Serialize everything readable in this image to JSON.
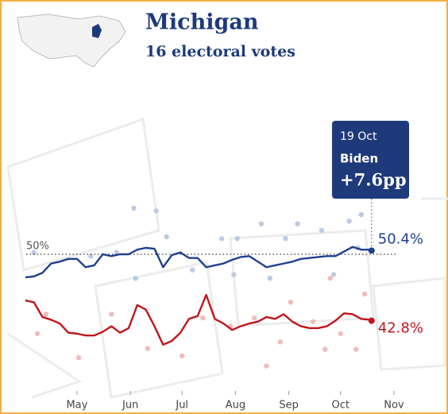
{
  "chart_data": {
    "type": "line",
    "title": "Michigan",
    "subtitle": "16 electoral votes",
    "x": [
      -30,
      -25,
      -20,
      -15,
      -10,
      -5,
      0,
      5,
      10,
      15,
      20,
      25,
      30,
      35,
      40,
      45,
      50,
      55,
      60,
      65,
      70,
      75,
      80,
      85,
      90,
      95,
      100,
      105,
      110,
      115,
      120,
      125,
      130,
      135,
      140,
      145,
      150,
      155,
      160,
      165,
      170,
      171
    ],
    "series": [
      {
        "name": "Biden",
        "color": "#1f3f8f",
        "end_label": "50.4%",
        "values": [
          47.5,
          47.6,
          48.0,
          49.0,
          49.2,
          49.5,
          49.5,
          48.6,
          48.8,
          50.0,
          49.8,
          50.0,
          50.0,
          50.5,
          50.7,
          50.6,
          48.6,
          49.9,
          50.2,
          49.6,
          49.6,
          48.6,
          48.8,
          49.0,
          49.4,
          49.7,
          49.8,
          49.2,
          48.6,
          48.8,
          49.0,
          49.2,
          49.5,
          49.6,
          49.7,
          49.8,
          49.8,
          50.3,
          50.8,
          50.5,
          50.5,
          50.4
        ]
      },
      {
        "color": "#c0151c",
        "end_label": "42.8%",
        "values": [
          45.0,
          44.8,
          43.2,
          42.9,
          42.5,
          41.5,
          41.4,
          41.2,
          41.2,
          41.6,
          42.2,
          41.5,
          42.0,
          44.5,
          44.0,
          42.2,
          40.2,
          40.6,
          41.5,
          43.0,
          43.3,
          45.6,
          43.0,
          42.5,
          41.8,
          42.2,
          42.5,
          42.7,
          43.2,
          43.0,
          43.5,
          42.7,
          42.2,
          42.0,
          42.0,
          42.2,
          42.8,
          43.6,
          43.5,
          43.0,
          42.9,
          42.8
        ]
      }
    ],
    "polls": [
      {
        "color": "#bccae4",
        "x": [
          -25,
          8,
          23,
          33,
          46,
          52,
          84,
          93,
          107,
          121,
          128,
          142,
          158,
          163,
          34,
          67,
          91,
          112,
          149,
          165
        ],
        "values": [
          50.2,
          49.8,
          50.2,
          55,
          54.7,
          51.9,
          51.7,
          51.7,
          53.3,
          51.7,
          53.3,
          52.6,
          53.6,
          50.7,
          47.4,
          48.3,
          47.8,
          47.4,
          47.8,
          54.3
        ]
      },
      {
        "color": "#f2bcbc",
        "x": [
          -23,
          -18,
          20,
          41,
          61,
          73,
          89,
          103,
          118,
          124,
          137,
          144,
          153,
          162,
          147,
          167,
          1,
          110
        ],
        "values": [
          41.4,
          43.5,
          43.5,
          39.8,
          39,
          43.1,
          42.2,
          43.1,
          40.5,
          44.8,
          42.7,
          39.7,
          41.4,
          39.7,
          47.4,
          45.7,
          38.8,
          37.9
        ]
      }
    ],
    "xlim": [
      -35,
      190
    ],
    "xticks": [
      {
        "value": 0,
        "label": "May"
      },
      {
        "value": 31,
        "label": "Jun"
      },
      {
        "value": 61,
        "label": "Jul"
      },
      {
        "value": 92,
        "label": "Aug"
      },
      {
        "value": 123,
        "label": "Sep"
      },
      {
        "value": 153,
        "label": "Oct"
      },
      {
        "value": 184,
        "label": "Nov"
      }
    ],
    "ylim": [
      34.5,
      65.5
    ],
    "yticks": [
      {
        "value": 50,
        "label": "50%"
      }
    ],
    "annotation": {
      "date": "19 Oct",
      "lead": "+7.6pp"
    }
  }
}
